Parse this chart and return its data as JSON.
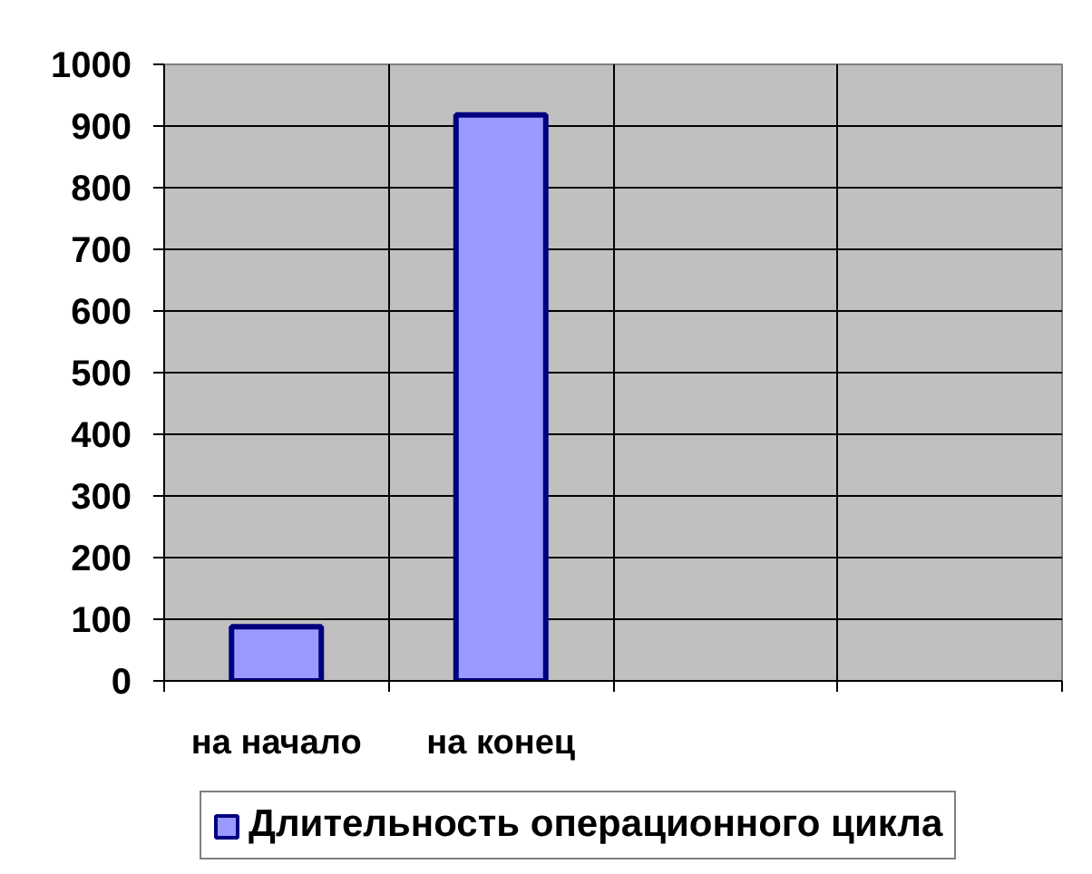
{
  "chart_data": {
    "type": "bar",
    "categories": [
      "на начало",
      "на конец",
      null,
      null
    ],
    "series": [
      {
        "name": "Длительность операционного цикла",
        "color": "#9999ff",
        "values": [
          88,
          918,
          null,
          null
        ]
      }
    ],
    "ylim": [
      0,
      1000
    ],
    "yticks": [
      0,
      100,
      200,
      300,
      400,
      500,
      600,
      700,
      800,
      900,
      1000
    ],
    "grid": true,
    "legend": "bottom"
  }
}
